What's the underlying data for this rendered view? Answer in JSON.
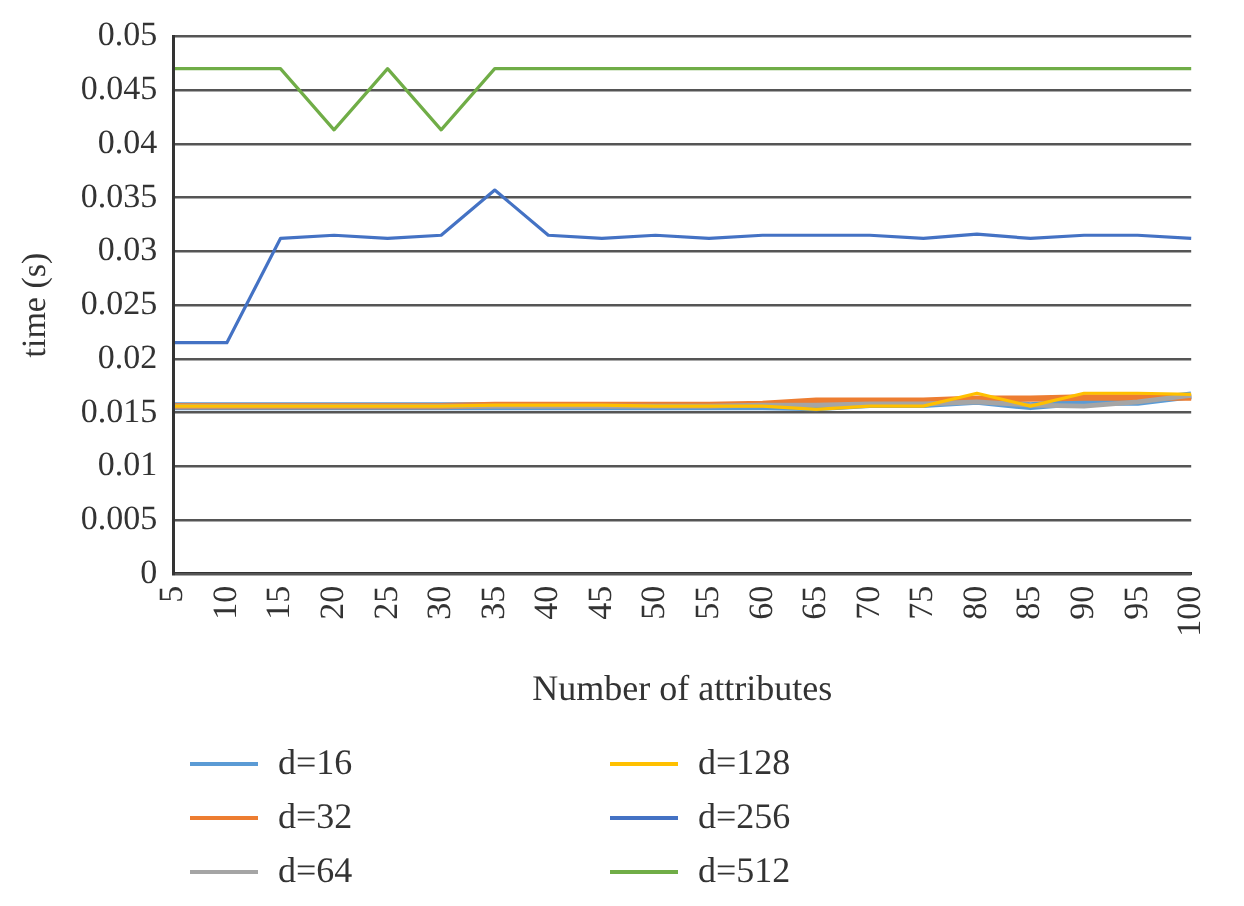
{
  "chart_data": {
    "type": "line",
    "xlabel": "Number of attributes",
    "ylabel": "time (s)",
    "categories": [
      "5",
      "10",
      "15",
      "20",
      "25",
      "30",
      "35",
      "40",
      "45",
      "50",
      "55",
      "60",
      "65",
      "70",
      "75",
      "80",
      "85",
      "90",
      "95",
      "100"
    ],
    "ylim": [
      0,
      0.05
    ],
    "yticks": [
      0,
      0.005,
      0.01,
      0.015,
      0.02,
      0.025,
      0.03,
      0.035,
      0.04,
      0.045,
      0.05
    ],
    "grid": "y",
    "legend": "bottom",
    "marker": "none",
    "line_style": "solid",
    "series": [
      {
        "name": "d=16",
        "color": "#5b9bd5",
        "values": [
          0.0156,
          0.0156,
          0.0156,
          0.0156,
          0.0156,
          0.0156,
          0.0156,
          0.0156,
          0.0156,
          0.0156,
          0.0156,
          0.0156,
          0.0155,
          0.0158,
          0.0158,
          0.0161,
          0.0156,
          0.016,
          0.016,
          0.0166
        ]
      },
      {
        "name": "d=32",
        "color": "#ed7d31",
        "values": [
          0.0156,
          0.0156,
          0.0156,
          0.0156,
          0.0156,
          0.0156,
          0.0157,
          0.0157,
          0.0157,
          0.0157,
          0.0157,
          0.0158,
          0.0161,
          0.0161,
          0.0161,
          0.0163,
          0.0163,
          0.0164,
          0.0164,
          0.0164
        ]
      },
      {
        "name": "d=64",
        "color": "#a5a5a5",
        "values": [
          0.0156,
          0.0156,
          0.0156,
          0.0156,
          0.0156,
          0.0156,
          0.0156,
          0.0156,
          0.0156,
          0.0156,
          0.0156,
          0.0157,
          0.0157,
          0.0158,
          0.0158,
          0.016,
          0.0157,
          0.0156,
          0.016,
          0.0166
        ]
      },
      {
        "name": "d=128",
        "color": "#ffc000",
        "values": [
          0.0156,
          0.0156,
          0.0156,
          0.0156,
          0.0156,
          0.0156,
          0.0157,
          0.0157,
          0.0157,
          0.0156,
          0.0156,
          0.0156,
          0.0153,
          0.0156,
          0.0156,
          0.0168,
          0.0156,
          0.0168,
          0.0168,
          0.0167
        ]
      },
      {
        "name": "d=256",
        "color": "#4472c4",
        "values": [
          0.0215,
          0.0215,
          0.0312,
          0.0315,
          0.0312,
          0.0315,
          0.0357,
          0.0315,
          0.0312,
          0.0315,
          0.0312,
          0.0315,
          0.0315,
          0.0315,
          0.0312,
          0.0316,
          0.0312,
          0.0315,
          0.0315,
          0.0312
        ]
      },
      {
        "name": "d=512",
        "color": "#70ad47",
        "values": [
          0.047,
          0.047,
          0.047,
          0.0413,
          0.047,
          0.0413,
          0.047,
          0.047,
          0.047,
          0.047,
          0.047,
          0.047,
          0.047,
          0.047,
          0.047,
          0.047,
          0.047,
          0.047,
          0.047,
          0.047
        ]
      }
    ]
  }
}
